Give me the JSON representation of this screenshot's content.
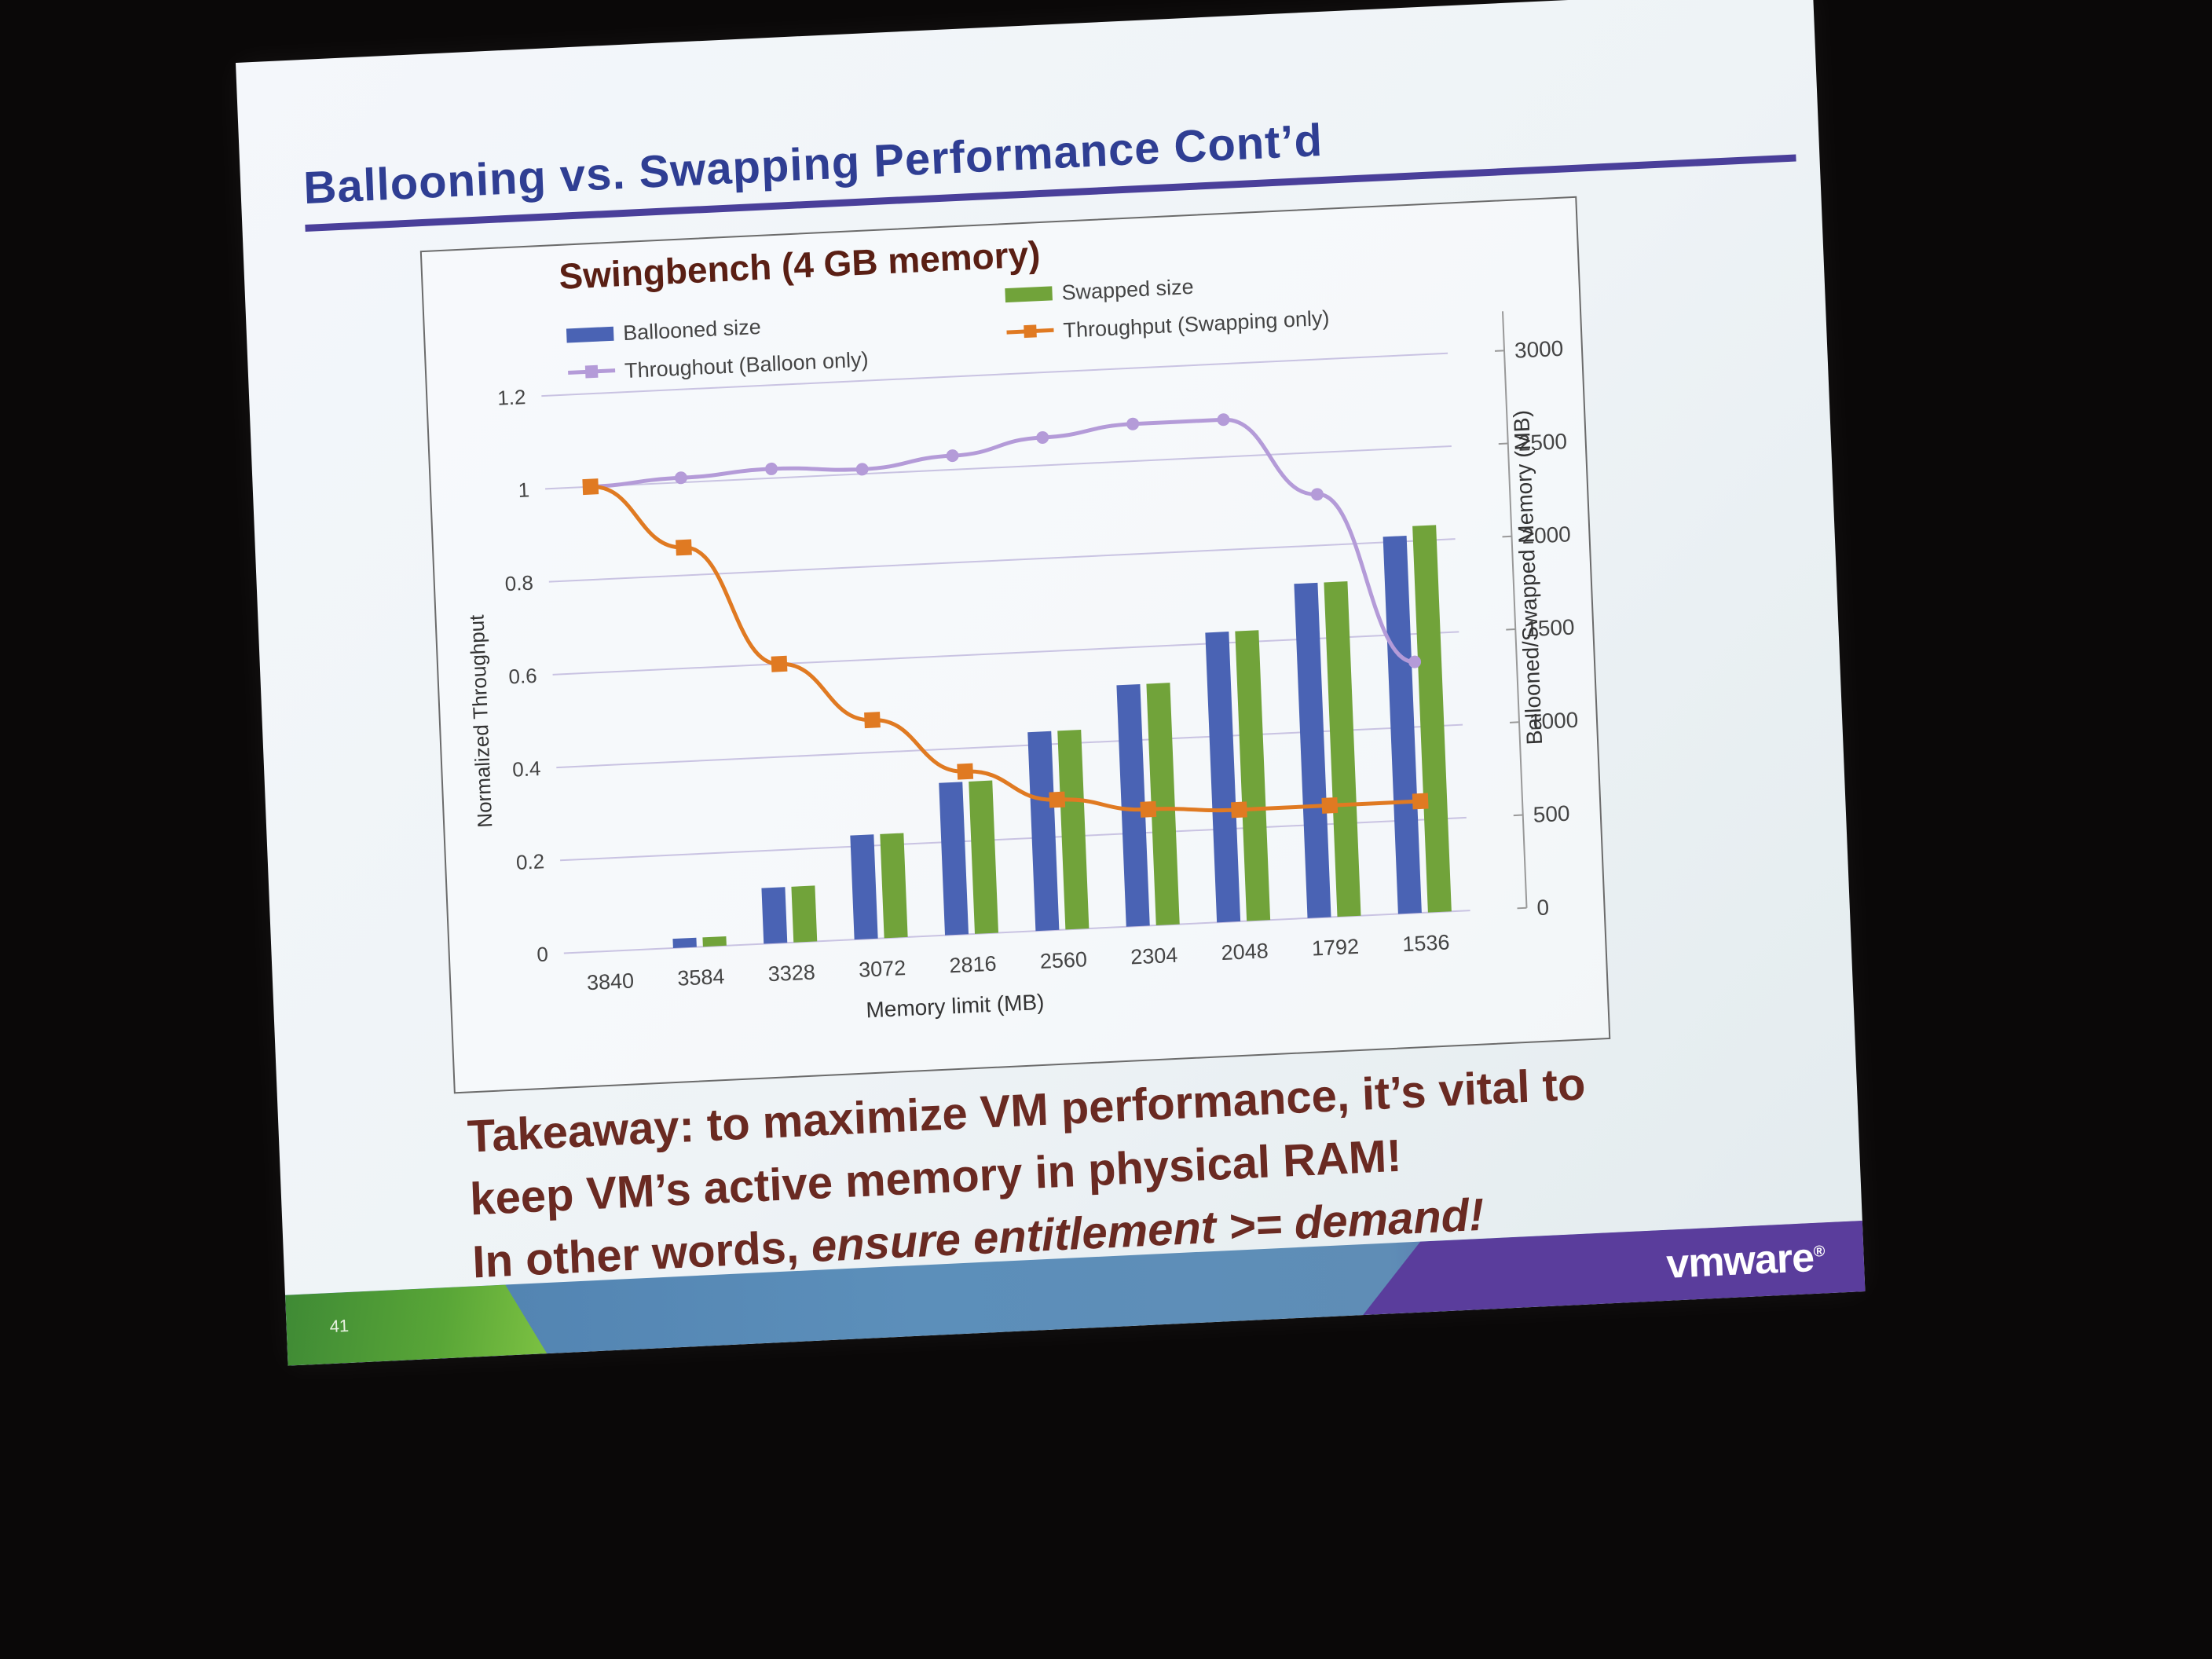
{
  "slide": {
    "title": "Ballooning vs. Swapping Performance Cont’d",
    "page_number": "41",
    "logo_text": "vmware",
    "logo_mark": "®"
  },
  "takeaway": {
    "line1": "Takeaway: to maximize VM performance, it’s vital to",
    "line2": "keep VM’s active memory in physical RAM!",
    "line3_plain": "In other words, ",
    "line3_emph": "ensure entitlement >= demand!"
  },
  "colors": {
    "ballooned": "#4a63b4",
    "swapped": "#71a33a",
    "throughput_balloon": "#b49bd8",
    "throughput_swap": "#e07a22",
    "title": "#2f3e93",
    "takeaway": "#6a2a22"
  },
  "chart_data": {
    "type": "bar",
    "title": "Swingbench (4 GB memory)",
    "xlabel": "Memory limit (MB)",
    "ylabel": "Normalized Throughput",
    "y2label": "Ballooned/Swapped Memory (MB)",
    "categories": [
      "3840",
      "3584",
      "3328",
      "3072",
      "2816",
      "2560",
      "2304",
      "2048",
      "1792",
      "1536"
    ],
    "ylim": [
      0,
      1.2
    ],
    "yticks": [
      "0",
      "0.2",
      "0.4",
      "0.6",
      "0.8",
      "1",
      "1.2"
    ],
    "y2lim": [
      0,
      3000
    ],
    "y2ticks": [
      "0",
      "500",
      "1000",
      "1500",
      "2000",
      "2500",
      "3000"
    ],
    "grid": true,
    "legend": "top",
    "series": [
      {
        "name": "Ballooned size",
        "type": "bar",
        "axis": "right",
        "values": [
          0,
          50,
          300,
          560,
          820,
          1070,
          1300,
          1560,
          1800,
          2030
        ]
      },
      {
        "name": "Swapped size",
        "type": "bar",
        "axis": "right",
        "values": [
          0,
          50,
          300,
          560,
          820,
          1070,
          1300,
          1560,
          1800,
          2080
        ]
      },
      {
        "name": "Throughout (Balloon only)",
        "type": "line",
        "axis": "left",
        "values": [
          1.0,
          1.01,
          1.02,
          1.01,
          1.03,
          1.06,
          1.08,
          1.08,
          0.91,
          0.54
        ]
      },
      {
        "name": "Throughput (Swapping only)",
        "type": "line",
        "axis": "left",
        "values": [
          1.0,
          0.86,
          0.6,
          0.47,
          0.35,
          0.28,
          0.25,
          0.24,
          0.24,
          0.24
        ]
      }
    ]
  }
}
